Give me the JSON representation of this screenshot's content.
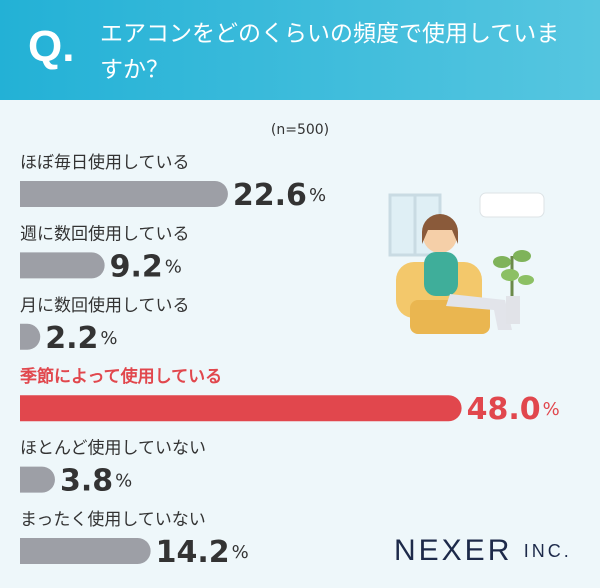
{
  "chart_data": {
    "type": "bar",
    "label": "Q.",
    "title": "エアコンをどのくらいの頻度で使用していますか？",
    "subtitle": "(n=500)",
    "categories": [
      "ほぼ毎日使用している",
      "週に数回使用している",
      "月に数回使用している",
      "季節によって使用している",
      "ほとんど使用していない",
      "まったく使用していない"
    ],
    "values": [
      22.6,
      9.2,
      2.2,
      48.0,
      3.8,
      14.2
    ],
    "value_labels": [
      "22.6%",
      "9.2%",
      "2.2%",
      "48.0%",
      "3.8%",
      "14.2%"
    ],
    "colors": [
      "#9d9fa6",
      "#9d9fa6",
      "#9d9fa6",
      "#e1474d",
      "#9d9fa6",
      "#9d9fa6"
    ],
    "label_colors": [
      "#333333",
      "#333333",
      "#333333",
      "#e1474d",
      "#333333",
      "#333333"
    ],
    "logo": "NEXER INC."
  }
}
